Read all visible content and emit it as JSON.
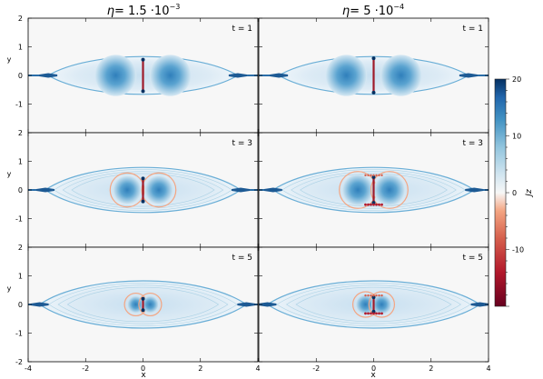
{
  "figure": {
    "column_titles": [
      {
        "eta_symbol": "η",
        "eq": "= 1.5 ·10",
        "exp": "−3"
      },
      {
        "eta_symbol": "η",
        "eq": "= 5 ·10",
        "exp": "−4"
      }
    ],
    "xlabel": "x",
    "ylabel": "y",
    "colorbar_label": "Jz"
  },
  "chart_data": {
    "type": "heatmap",
    "description_fields": {
      "rows_time": [
        "t = 1",
        "t = 3",
        "t = 5"
      ],
      "columns_eta": [
        "1.5·10^-3",
        "5·10^-4"
      ]
    },
    "xlim": [
      -4,
      4
    ],
    "ylim": [
      -2,
      2
    ],
    "x_ticks": [
      -4,
      -2,
      0,
      2,
      4
    ],
    "y_ticks": [
      -2,
      -1,
      0,
      1,
      2
    ],
    "colorbar": {
      "label": "Jz",
      "range": [
        -20,
        20
      ],
      "ticks": [
        20,
        10,
        0,
        -10
      ],
      "colormap": [
        "#67001f",
        "#b2182b",
        "#d6604d",
        "#f4a582",
        "#fddbc7",
        "#f7f7f7",
        "#d1e5f0",
        "#92c5de",
        "#4393c3",
        "#2166ac",
        "#053061"
      ]
    },
    "panels": [
      {
        "row": 0,
        "col": 0,
        "time_label": "t = 1",
        "eta": "1.5·10^-3",
        "outer_halfwidth": 3.3,
        "outer_height": 0.88,
        "island_x": 0.95,
        "island_r": 0.72,
        "sheet_halfheight": 0.55
      },
      {
        "row": 0,
        "col": 1,
        "time_label": "t = 1",
        "eta": "5·10^-4",
        "outer_halfwidth": 3.3,
        "outer_height": 0.88,
        "island_x": 0.95,
        "island_r": 0.72,
        "sheet_halfheight": 0.6
      },
      {
        "row": 1,
        "col": 0,
        "time_label": "t = 3",
        "eta": "1.5·10^-3",
        "outer_halfwidth": 3.4,
        "outer_height": 1.05,
        "island_x": 0.55,
        "island_r": 0.5,
        "sheet_halfheight": 0.4
      },
      {
        "row": 1,
        "col": 1,
        "time_label": "t = 3",
        "eta": "5·10^-4",
        "outer_halfwidth": 3.5,
        "outer_height": 1.05,
        "island_x": 0.55,
        "island_r": 0.55,
        "sheet_halfheight": 0.45
      },
      {
        "row": 2,
        "col": 0,
        "time_label": "t = 5",
        "eta": "1.5·10^-3",
        "outer_halfwidth": 3.6,
        "outer_height": 1.1,
        "island_x": 0.25,
        "island_r": 0.3,
        "sheet_halfheight": 0.2
      },
      {
        "row": 2,
        "col": 1,
        "time_label": "t = 5",
        "eta": "5·10^-4",
        "outer_halfwidth": 3.7,
        "outer_height": 1.1,
        "island_x": 0.28,
        "island_r": 0.35,
        "sheet_halfheight": 0.25
      }
    ]
  }
}
